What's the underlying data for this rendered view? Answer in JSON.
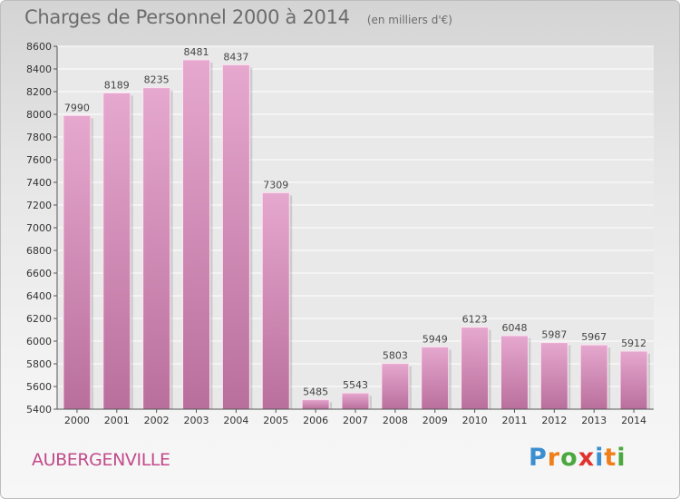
{
  "header": {
    "title": "Charges de Personnel 2000 à 2014",
    "subtitle": "(en milliers d'€)"
  },
  "commune": "AUBERGENVILLE",
  "brand": {
    "letters": [
      "P",
      "r",
      "o",
      "x",
      "i",
      "t",
      "i"
    ],
    "colors": [
      "#3a8fd1",
      "#f07f1a",
      "#4aa83e",
      "#e0332f",
      "#3a8fd1",
      "#f07f1a",
      "#4aa83e"
    ]
  },
  "chart_data": {
    "type": "bar",
    "categories": [
      "2000",
      "2001",
      "2002",
      "2003",
      "2004",
      "2005",
      "2006",
      "2007",
      "2008",
      "2009",
      "2010",
      "2011",
      "2012",
      "2013",
      "2014"
    ],
    "values": [
      7990,
      8189,
      8235,
      8481,
      8437,
      7309,
      5485,
      5543,
      5803,
      5949,
      6123,
      6048,
      5987,
      5967,
      5912
    ],
    "ylim": [
      5400,
      8600
    ],
    "yticks": [
      5400,
      5600,
      5800,
      6000,
      6200,
      6400,
      6600,
      6800,
      7000,
      7200,
      7400,
      7600,
      7800,
      8000,
      8200,
      8400,
      8600
    ],
    "grid": true,
    "bar_color": "#d48fba"
  }
}
